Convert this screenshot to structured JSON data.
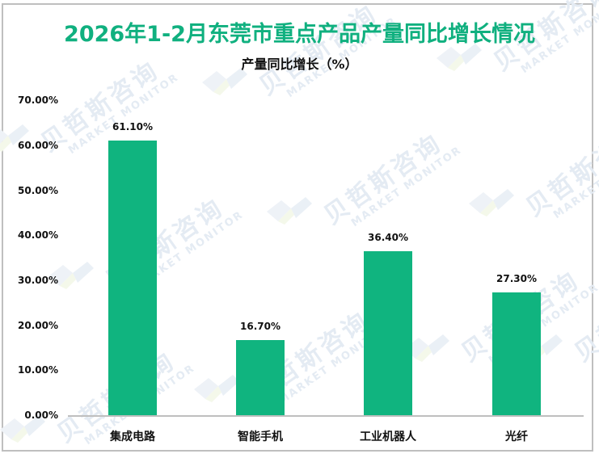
{
  "title": "2026年1-2月东莞市重点产品产量同比增长情况",
  "subtitle": "产量同比增长（%）",
  "colors": {
    "bar": "#10b47f",
    "title": "#10b07f",
    "axis": "#bfbfbf",
    "frame": "#bfbfbf",
    "watermark": "#e4ebf3"
  },
  "watermark": {
    "cn": "贝哲斯咨询",
    "en": "MARKET MONITOR"
  },
  "y_axis": {
    "ticks": [
      "0.00%",
      "10.00%",
      "20.00%",
      "30.00%",
      "40.00%",
      "50.00%",
      "60.00%",
      "70.00%"
    ]
  },
  "bars": [
    {
      "category": "集成电路",
      "value": 61.1,
      "label": "61.10%"
    },
    {
      "category": "智能手机",
      "value": 16.7,
      "label": "16.70%"
    },
    {
      "category": "工业机器人",
      "value": 36.4,
      "label": "36.40%"
    },
    {
      "category": "光纤",
      "value": 27.3,
      "label": "27.30%"
    }
  ],
  "chart_data": {
    "type": "bar",
    "title": "2026年1-2月东莞市重点产品产量同比增长情况",
    "subtitle": "产量同比增长（%）",
    "categories": [
      "集成电路",
      "智能手机",
      "工业机器人",
      "光纤"
    ],
    "values": [
      61.1,
      16.7,
      36.4,
      27.3
    ],
    "data_labels": [
      "61.10%",
      "16.70%",
      "36.40%",
      "27.30%"
    ],
    "xlabel": "",
    "ylabel": "产量同比增长（%）",
    "ylim": [
      0,
      70
    ],
    "yticks": [
      0,
      10,
      20,
      30,
      40,
      50,
      60,
      70
    ],
    "ytick_format": "0.00%",
    "grid": false,
    "legend": "none",
    "series": [
      {
        "name": "产量同比增长（%）",
        "values": [
          61.1,
          16.7,
          36.4,
          27.3
        ],
        "color": "#10b47f"
      }
    ]
  }
}
